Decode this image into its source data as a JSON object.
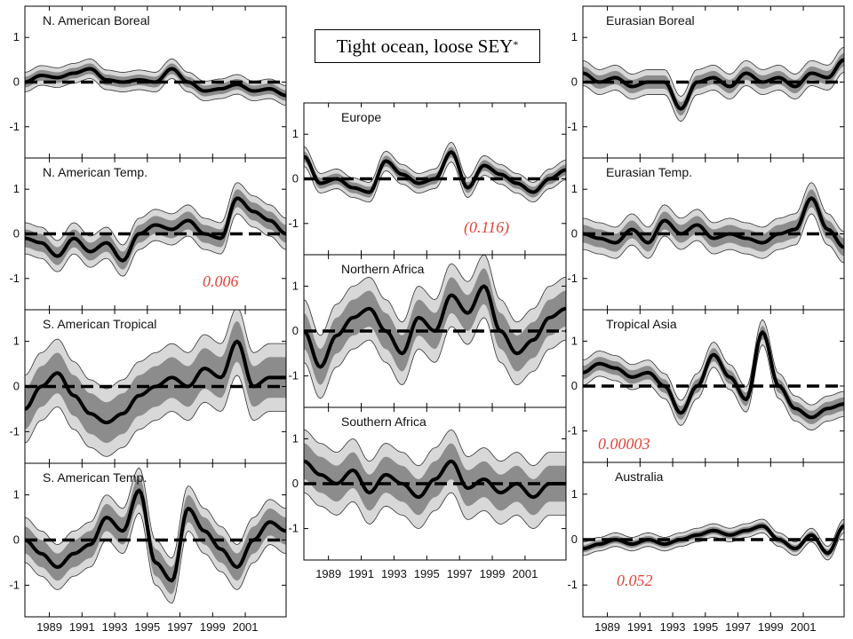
{
  "figure_title": {
    "text": "Tight ocean, loose SEY",
    "superscript": "*"
  },
  "chart_data": [
    {
      "type": "line",
      "title": "N. American Boreal",
      "annotation": "",
      "yticks": [
        1,
        0,
        -1
      ],
      "ylim": [
        -1.7,
        1.7
      ],
      "x": [
        1987.5,
        1988.5,
        1989.5,
        1990.5,
        1991.5,
        1992.5,
        1993.5,
        1994.5,
        1995.5,
        1996.5,
        1997.5,
        1998.5,
        1999.5,
        2000.5,
        2001.5,
        2002.5,
        2003.5
      ],
      "series": [
        {
          "values": [
            0.0,
            0.15,
            0.1,
            0.2,
            0.3,
            0.05,
            0.0,
            0.05,
            0.0,
            0.3,
            0.0,
            -0.2,
            -0.15,
            -0.05,
            -0.2,
            -0.15,
            -0.3
          ],
          "band_inner": 0.12,
          "band_outer": 0.22,
          "dashed_zero": true
        }
      ]
    },
    {
      "type": "line",
      "title": "N. American Temp.",
      "annotation": "0.006",
      "yticks": [
        1,
        0,
        -1
      ],
      "ylim": [
        -1.7,
        1.7
      ],
      "x": [
        1987.5,
        1988.5,
        1989.5,
        1990.5,
        1991.5,
        1992.5,
        1993.5,
        1994.5,
        1995.5,
        1996.5,
        1997.5,
        1998.5,
        1999.5,
        2000.5,
        2001.5,
        2002.5,
        2003.5
      ],
      "series": [
        {
          "values": [
            -0.1,
            -0.2,
            -0.5,
            -0.1,
            -0.4,
            -0.2,
            -0.6,
            0.0,
            0.2,
            0.1,
            0.3,
            0.0,
            -0.1,
            0.8,
            0.5,
            0.3,
            0.0
          ],
          "band_inner": 0.2,
          "band_outer": 0.35,
          "dashed_zero": true
        }
      ]
    },
    {
      "type": "line",
      "title": "S. American Tropical",
      "annotation": "",
      "yticks": [
        1,
        0,
        -1
      ],
      "ylim": [
        -1.7,
        1.7
      ],
      "x": [
        1987.5,
        1988.5,
        1989.5,
        1990.5,
        1991.5,
        1992.5,
        1993.5,
        1994.5,
        1995.5,
        1996.5,
        1997.5,
        1998.5,
        1999.5,
        2000.5,
        2001.5,
        2002.5,
        2003.5
      ],
      "series": [
        {
          "values": [
            -0.5,
            0.0,
            0.3,
            -0.2,
            -0.6,
            -0.8,
            -0.6,
            -0.2,
            0.0,
            0.2,
            0.0,
            0.4,
            0.2,
            1.0,
            0.0,
            0.2,
            0.2
          ],
          "band_inner": 0.45,
          "band_outer": 0.75,
          "dashed_zero": true
        }
      ]
    },
    {
      "type": "line",
      "title": "S. American Temp.",
      "annotation": "",
      "yticks": [
        1,
        0,
        -1
      ],
      "ylim": [
        -1.7,
        1.7
      ],
      "x": [
        1987.5,
        1988.5,
        1989.5,
        1990.5,
        1991.5,
        1992.5,
        1993.5,
        1994.5,
        1995.5,
        1996.5,
        1997.5,
        1998.5,
        1999.5,
        2000.5,
        2001.5,
        2002.5,
        2003.5
      ],
      "series": [
        {
          "values": [
            0.0,
            -0.3,
            -0.6,
            -0.3,
            -0.1,
            0.5,
            0.2,
            1.1,
            -0.5,
            -0.9,
            0.7,
            0.2,
            -0.2,
            -0.6,
            0.0,
            0.4,
            0.2
          ],
          "band_inner": 0.3,
          "band_outer": 0.5,
          "dashed_zero": true
        }
      ]
    },
    {
      "type": "line",
      "title": "Europe",
      "annotation": "(0.116)",
      "yticks": [
        1,
        0,
        -1
      ],
      "ylim": [
        -1.7,
        1.7
      ],
      "x": [
        1987.5,
        1988.5,
        1989.5,
        1990.5,
        1991.5,
        1992.5,
        1993.5,
        1994.5,
        1995.5,
        1996.5,
        1997.5,
        1998.5,
        1999.5,
        2000.5,
        2001.5,
        2002.5,
        2003.5
      ],
      "series": [
        {
          "values": [
            0.5,
            -0.1,
            0.0,
            -0.2,
            -0.3,
            0.4,
            0.1,
            -0.1,
            0.0,
            0.6,
            -0.2,
            0.3,
            0.1,
            -0.1,
            -0.3,
            0.0,
            0.2
          ],
          "band_inner": 0.12,
          "band_outer": 0.22,
          "dashed_zero": true
        }
      ]
    },
    {
      "type": "line",
      "title": "Northern Africa",
      "annotation": "",
      "yticks": [
        1,
        0,
        -1
      ],
      "ylim": [
        -1.7,
        1.7
      ],
      "x": [
        1987.5,
        1988.5,
        1989.5,
        1990.5,
        1991.5,
        1992.5,
        1993.5,
        1994.5,
        1995.5,
        1996.5,
        1997.5,
        1998.5,
        1999.5,
        2000.5,
        2001.5,
        2002.5,
        2003.5
      ],
      "series": [
        {
          "values": [
            0.0,
            -0.8,
            -0.1,
            0.3,
            0.5,
            0.0,
            -0.5,
            0.3,
            0.0,
            0.8,
            0.4,
            1.0,
            0.0,
            -0.5,
            -0.2,
            0.3,
            0.5
          ],
          "band_inner": 0.4,
          "band_outer": 0.7,
          "dashed_zero": true
        }
      ]
    },
    {
      "type": "line",
      "title": "Southern Africa",
      "annotation": "",
      "yticks": [
        1,
        0,
        -1
      ],
      "ylim": [
        -1.7,
        1.7
      ],
      "x": [
        1987.5,
        1988.5,
        1989.5,
        1990.5,
        1991.5,
        1992.5,
        1993.5,
        1994.5,
        1995.5,
        1996.5,
        1997.5,
        1998.5,
        1999.5,
        2000.5,
        2001.5,
        2002.5,
        2003.5
      ],
      "series": [
        {
          "values": [
            0.5,
            0.2,
            0.0,
            0.3,
            -0.2,
            0.2,
            0.0,
            -0.3,
            0.1,
            0.5,
            -0.1,
            0.1,
            -0.2,
            0.0,
            -0.3,
            0.0,
            0.0
          ],
          "band_inner": 0.4,
          "band_outer": 0.7,
          "dashed_zero": true
        }
      ]
    },
    {
      "type": "line",
      "title": "Eurasian Boreal",
      "annotation": "",
      "yticks": [
        1,
        0,
        -1
      ],
      "ylim": [
        -1.7,
        1.7
      ],
      "x": [
        1987.5,
        1988.5,
        1989.5,
        1990.5,
        1991.5,
        1992.5,
        1993.5,
        1994.5,
        1995.5,
        1996.5,
        1997.5,
        1998.5,
        1999.5,
        2000.5,
        2001.5,
        2002.5,
        2003.5
      ],
      "series": [
        {
          "values": [
            0.2,
            0.0,
            0.1,
            -0.1,
            0.0,
            0.0,
            -0.6,
            0.0,
            0.1,
            -0.1,
            0.2,
            0.0,
            0.1,
            -0.1,
            0.2,
            0.1,
            0.5
          ],
          "band_inner": 0.15,
          "band_outer": 0.28,
          "dashed_zero": true
        }
      ]
    },
    {
      "type": "line",
      "title": "Eurasian Temp.",
      "annotation": "",
      "yticks": [
        1,
        0,
        -1
      ],
      "ylim": [
        -1.7,
        1.7
      ],
      "x": [
        1987.5,
        1988.5,
        1989.5,
        1990.5,
        1991.5,
        1992.5,
        1993.5,
        1994.5,
        1995.5,
        1996.5,
        1997.5,
        1998.5,
        1999.5,
        2000.5,
        2001.5,
        2002.5,
        2003.5
      ],
      "series": [
        {
          "values": [
            0.0,
            -0.1,
            -0.2,
            0.1,
            -0.2,
            0.3,
            0.0,
            0.2,
            -0.1,
            0.0,
            -0.1,
            -0.2,
            0.0,
            0.1,
            0.8,
            0.1,
            -0.3
          ],
          "band_inner": 0.2,
          "band_outer": 0.35,
          "dashed_zero": true
        }
      ]
    },
    {
      "type": "line",
      "title": "Tropical Asia",
      "annotation": "0.00003",
      "yticks": [
        1,
        0,
        -1
      ],
      "ylim": [
        -1.7,
        1.7
      ],
      "x": [
        1987.5,
        1988.5,
        1989.5,
        1990.5,
        1991.5,
        1992.5,
        1993.5,
        1994.5,
        1995.5,
        1996.5,
        1997.5,
        1998.5,
        1999.5,
        2000.5,
        2001.5,
        2002.5,
        2003.5
      ],
      "series": [
        {
          "values": [
            0.3,
            0.5,
            0.4,
            0.2,
            0.3,
            0.0,
            -0.6,
            0.0,
            0.7,
            0.2,
            -0.3,
            1.2,
            0.0,
            -0.5,
            -0.7,
            -0.5,
            -0.4
          ],
          "band_inner": 0.15,
          "band_outer": 0.28,
          "dashed_zero": true
        }
      ]
    },
    {
      "type": "line",
      "title": "Australia",
      "annotation": "0.052",
      "yticks": [
        1,
        0,
        -1
      ],
      "ylim": [
        -1.7,
        1.7
      ],
      "x": [
        1987.5,
        1988.5,
        1989.5,
        1990.5,
        1991.5,
        1992.5,
        1993.5,
        1994.5,
        1995.5,
        1996.5,
        1997.5,
        1998.5,
        1999.5,
        2000.5,
        2001.5,
        2002.5,
        2003.5
      ],
      "series": [
        {
          "values": [
            -0.2,
            -0.1,
            0.0,
            -0.1,
            0.0,
            -0.1,
            0.0,
            0.1,
            0.2,
            0.1,
            0.2,
            0.3,
            0.0,
            -0.2,
            0.1,
            -0.3,
            0.3
          ],
          "band_inner": 0.08,
          "band_outer": 0.15,
          "dashed_zero": true
        }
      ]
    }
  ],
  "xticks": [
    "1989",
    "1991",
    "1993",
    "1995",
    "1997",
    "1999",
    "2001"
  ],
  "xtick_values": [
    1989,
    1991,
    1993,
    1995,
    1997,
    1999,
    2001
  ],
  "xlim": [
    1987.5,
    2003.5
  ],
  "colors": {
    "outer_band": "#d8d8d8",
    "inner_band": "#8c8c8c",
    "line": "#000000",
    "annotation": "#e0443a"
  }
}
